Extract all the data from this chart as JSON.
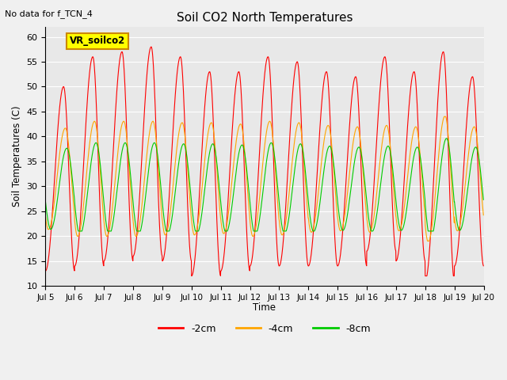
{
  "title": "Soil CO2 North Temperatures",
  "ylabel": "Soil Temperatures (C)",
  "xlabel": "Time",
  "top_left_text": "No data for f_TCN_4",
  "legend_label": "VR_soilco2",
  "ylim": [
    10,
    62
  ],
  "yticks": [
    10,
    15,
    20,
    25,
    30,
    35,
    40,
    45,
    50,
    55,
    60
  ],
  "line_colors": {
    "-2cm": "#ff0000",
    "-4cm": "#ffa500",
    "-8cm": "#00cc00"
  },
  "axes_bg_color": "#e8e8e8",
  "fig_bg_color": "#f0f0f0",
  "x_start": 5.0,
  "x_end": 20.0,
  "xtick_labels": [
    "Jul 5",
    "Jul 6",
    "Jul 7",
    "Jul 8",
    "Jul 9",
    "Jul 10",
    "Jul 11",
    "Jul 12",
    "Jul 13",
    "Jul 14",
    "Jul 15",
    "Jul 16",
    "Jul 17",
    "Jul 18",
    "Jul 19",
    "Jul 20"
  ],
  "xtick_positions": [
    5,
    6,
    7,
    8,
    9,
    10,
    11,
    12,
    13,
    14,
    15,
    16,
    17,
    18,
    19,
    20
  ],
  "figsize": [
    6.4,
    4.8
  ],
  "dpi": 100
}
